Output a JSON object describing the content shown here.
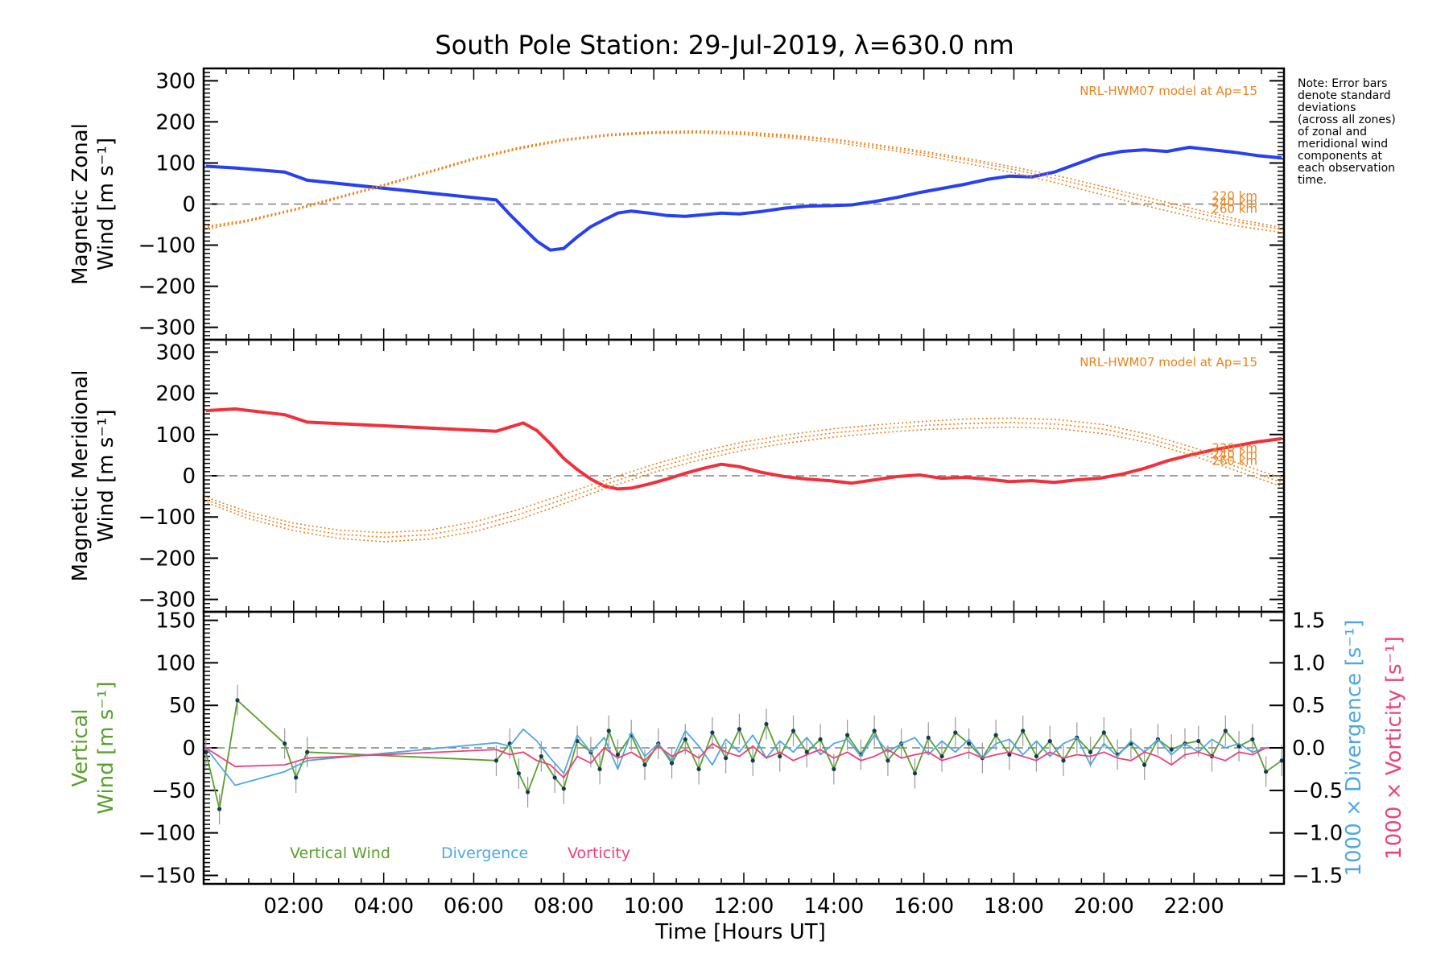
{
  "chart_data": [
    {
      "type": "line",
      "panel": "zonal",
      "title": "South Pole Station: 29-Jul-2019, λ=630.0 nm",
      "ylabel_lines": [
        "Magnetic Zonal",
        "Wind [m s⁻¹]"
      ],
      "ylim": [
        -330,
        330
      ],
      "yticks": [
        300,
        200,
        100,
        0,
        -100,
        -200,
        -300
      ],
      "xlim": [
        0.0,
        24.0
      ],
      "model_annotation": "NRL-HWM07 model at Ap=15",
      "model_altitude_labels": [
        "220 km",
        "240 km",
        "260 km"
      ],
      "note": [
        "Note: Error bars",
        "denote standard",
        "deviations",
        "(across all zones)",
        "of zonal and",
        "meridional wind",
        "components at",
        "each observation",
        "time."
      ],
      "series": [
        {
          "name": "Mean magnetic zonal wind",
          "color": "#2840f0",
          "x": [
            0.05,
            0.7,
            1.8,
            2.3,
            6.5,
            6.8,
            7.1,
            7.4,
            7.7,
            8.0,
            8.3,
            8.6,
            8.9,
            9.2,
            9.5,
            9.9,
            10.3,
            10.7,
            11.1,
            11.5,
            11.9,
            12.4,
            12.9,
            13.4,
            13.9,
            14.4,
            14.9,
            15.4,
            15.9,
            16.4,
            16.9,
            17.4,
            17.9,
            18.4,
            18.9,
            19.4,
            19.9,
            20.4,
            20.9,
            21.4,
            21.9,
            22.4,
            22.9,
            23.4,
            23.95
          ],
          "y": [
            92,
            88,
            78,
            58,
            10,
            -25,
            -58,
            -90,
            -112,
            -108,
            -80,
            -55,
            -38,
            -22,
            -17,
            -22,
            -28,
            -30,
            -26,
            -22,
            -24,
            -18,
            -10,
            -5,
            -4,
            -2,
            6,
            16,
            28,
            38,
            48,
            60,
            68,
            66,
            78,
            98,
            118,
            128,
            132,
            128,
            138,
            132,
            126,
            118,
            112
          ]
        },
        {
          "name": "NRL-HWM07 220 km",
          "color": "#e8831c",
          "x": [
            0.0,
            1.0,
            2.0,
            3.0,
            4.0,
            5.0,
            6.0,
            7.0,
            8.0,
            9.0,
            10.0,
            11.0,
            12.0,
            13.0,
            14.0,
            15.0,
            16.0,
            17.0,
            18.0,
            19.0,
            20.0,
            21.0,
            22.0,
            23.0,
            24.0
          ],
          "y": [
            -55,
            -38,
            -12,
            18,
            48,
            80,
            112,
            138,
            158,
            170,
            176,
            178,
            175,
            168,
            158,
            144,
            128,
            110,
            90,
            68,
            42,
            15,
            -12,
            -38,
            -58
          ]
        },
        {
          "name": "NRL-HWM07 240 km",
          "color": "#e8831c",
          "x": [
            0.0,
            1.0,
            2.0,
            3.0,
            4.0,
            5.0,
            6.0,
            7.0,
            8.0,
            9.0,
            10.0,
            11.0,
            12.0,
            13.0,
            14.0,
            15.0,
            16.0,
            17.0,
            18.0,
            19.0,
            20.0,
            21.0,
            22.0,
            23.0,
            24.0
          ],
          "y": [
            -58,
            -40,
            -14,
            16,
            46,
            78,
            110,
            136,
            156,
            168,
            174,
            176,
            172,
            165,
            155,
            140,
            124,
            106,
            84,
            60,
            34,
            6,
            -20,
            -44,
            -62
          ]
        },
        {
          "name": "NRL-HWM07 260 km",
          "color": "#e8831c",
          "x": [
            0.0,
            1.0,
            2.0,
            3.0,
            4.0,
            5.0,
            6.0,
            7.0,
            8.0,
            9.0,
            10.0,
            11.0,
            12.0,
            13.0,
            14.0,
            15.0,
            16.0,
            17.0,
            18.0,
            19.0,
            20.0,
            21.0,
            22.0,
            23.0,
            24.0
          ],
          "y": [
            -62,
            -42,
            -16,
            14,
            44,
            76,
            108,
            134,
            154,
            166,
            172,
            173,
            169,
            161,
            150,
            135,
            118,
            98,
            76,
            50,
            22,
            -6,
            -32,
            -54,
            -70
          ]
        }
      ]
    },
    {
      "type": "line",
      "panel": "meridional",
      "ylabel_lines": [
        "Magnetic Meridional",
        "Wind [m s⁻¹]"
      ],
      "ylim": [
        -330,
        330
      ],
      "yticks": [
        300,
        200,
        100,
        0,
        -100,
        -200,
        -300
      ],
      "xlim": [
        0.0,
        24.0
      ],
      "model_annotation": "NRL-HWM07 model at Ap=15",
      "model_altitude_labels": [
        "220 km",
        "240 km",
        "260 km"
      ],
      "series": [
        {
          "name": "Mean magnetic meridional wind",
          "color": "#f0303c",
          "x": [
            0.05,
            0.7,
            1.8,
            2.3,
            6.5,
            6.8,
            7.1,
            7.4,
            7.7,
            8.0,
            8.3,
            8.6,
            8.9,
            9.2,
            9.5,
            9.9,
            10.3,
            10.7,
            11.1,
            11.5,
            11.9,
            12.4,
            12.9,
            13.4,
            13.9,
            14.4,
            14.9,
            15.4,
            15.9,
            16.4,
            16.9,
            17.4,
            17.9,
            18.4,
            18.9,
            19.4,
            19.9,
            20.4,
            20.9,
            21.4,
            21.9,
            22.4,
            22.9,
            23.4,
            23.95
          ],
          "y": [
            158,
            162,
            148,
            130,
            108,
            118,
            128,
            110,
            78,
            42,
            15,
            -8,
            -25,
            -32,
            -30,
            -20,
            -8,
            6,
            18,
            28,
            22,
            8,
            -2,
            -8,
            -12,
            -18,
            -10,
            -2,
            2,
            -6,
            -4,
            -8,
            -14,
            -12,
            -16,
            -10,
            -6,
            4,
            18,
            36,
            50,
            62,
            72,
            82,
            90
          ]
        },
        {
          "name": "NRL-HWM07 220 km",
          "color": "#e8831c",
          "x": [
            0.0,
            1.0,
            2.0,
            3.0,
            4.0,
            5.0,
            6.0,
            7.0,
            8.0,
            9.0,
            10.0,
            11.0,
            12.0,
            13.0,
            14.0,
            15.0,
            16.0,
            17.0,
            18.0,
            19.0,
            20.0,
            21.0,
            22.0,
            23.0,
            24.0
          ],
          "y": [
            -50,
            -88,
            -115,
            -132,
            -138,
            -132,
            -112,
            -82,
            -45,
            -8,
            28,
            58,
            82,
            100,
            114,
            124,
            132,
            138,
            140,
            136,
            124,
            100,
            68,
            30,
            -8
          ]
        },
        {
          "name": "NRL-HWM07 240 km",
          "color": "#e8831c",
          "x": [
            0.0,
            1.0,
            2.0,
            3.0,
            4.0,
            5.0,
            6.0,
            7.0,
            8.0,
            9.0,
            10.0,
            11.0,
            12.0,
            13.0,
            14.0,
            15.0,
            16.0,
            17.0,
            18.0,
            19.0,
            20.0,
            21.0,
            22.0,
            23.0,
            24.0
          ],
          "y": [
            -56,
            -96,
            -124,
            -142,
            -149,
            -143,
            -124,
            -94,
            -57,
            -18,
            18,
            48,
            72,
            90,
            104,
            114,
            122,
            127,
            129,
            125,
            113,
            90,
            58,
            20,
            -18
          ]
        },
        {
          "name": "NRL-HWM07 260 km",
          "color": "#e8831c",
          "x": [
            0.0,
            1.0,
            2.0,
            3.0,
            4.0,
            5.0,
            6.0,
            7.0,
            8.0,
            9.0,
            10.0,
            11.0,
            12.0,
            13.0,
            14.0,
            15.0,
            16.0,
            17.0,
            18.0,
            19.0,
            20.0,
            21.0,
            22.0,
            23.0,
            24.0
          ],
          "y": [
            -62,
            -104,
            -133,
            -152,
            -160,
            -154,
            -136,
            -106,
            -68,
            -28,
            8,
            38,
            62,
            80,
            94,
            104,
            112,
            116,
            118,
            114,
            102,
            80,
            48,
            10,
            -28
          ]
        }
      ]
    },
    {
      "type": "line",
      "panel": "vertical",
      "ylabel_lines": [
        "Vertical",
        "Wind [m s⁻¹]"
      ],
      "ylim": [
        -160,
        160
      ],
      "yticks": [
        150,
        100,
        50,
        0,
        -50,
        -100,
        -150
      ],
      "y2lim": [
        -1.6,
        1.6
      ],
      "y2ticks": [
        1.5,
        1.0,
        0.5,
        0.0,
        -0.5,
        -1.0,
        -1.5
      ],
      "y2ticklabels": [
        "1.5",
        "1.0",
        "0.5",
        "0.0",
        "−0.5",
        "−1.0",
        "−1.5"
      ],
      "y2label_divergence": "1000 × Divergence [s⁻¹]",
      "y2label_vorticity": "1000 × Vorticity [s⁻¹]",
      "xlim": [
        0.0,
        24.0
      ],
      "xticks": [
        2,
        4,
        6,
        8,
        10,
        12,
        14,
        16,
        18,
        20,
        22
      ],
      "xticklabels": [
        "02:00",
        "04:00",
        "06:00",
        "08:00",
        "10:00",
        "12:00",
        "14:00",
        "16:00",
        "18:00",
        "20:00",
        "22:00"
      ],
      "xlabel": "Time [Hours UT]",
      "legend": [
        "Vertical Wind",
        "Divergence",
        "Vorticity"
      ],
      "series": [
        {
          "name": "Vertical Wind",
          "color": "#5aa02c",
          "x": [
            0.05,
            0.35,
            0.75,
            1.8,
            2.05,
            2.3,
            6.5,
            6.8,
            7.0,
            7.2,
            7.5,
            7.8,
            8.0,
            8.3,
            8.6,
            8.8,
            9.0,
            9.2,
            9.5,
            9.8,
            10.1,
            10.4,
            10.7,
            11.0,
            11.3,
            11.6,
            11.9,
            12.2,
            12.5,
            12.8,
            13.1,
            13.4,
            13.7,
            14.0,
            14.3,
            14.6,
            14.9,
            15.2,
            15.5,
            15.8,
            16.1,
            16.4,
            16.7,
            17.0,
            17.3,
            17.6,
            17.9,
            18.2,
            18.5,
            18.8,
            19.1,
            19.4,
            19.7,
            20.0,
            20.3,
            20.6,
            20.9,
            21.2,
            21.5,
            21.8,
            22.1,
            22.4,
            22.7,
            23.0,
            23.3,
            23.6,
            23.95
          ],
          "y": [
            -5,
            -72,
            56,
            5,
            -35,
            -5,
            -15,
            5,
            -30,
            -52,
            -10,
            -35,
            -48,
            8,
            -5,
            -25,
            20,
            -8,
            15,
            -20,
            5,
            -18,
            10,
            -25,
            18,
            -12,
            22,
            -15,
            28,
            -10,
            20,
            -5,
            10,
            -25,
            15,
            -8,
            20,
            -15,
            5,
            -30,
            12,
            -10,
            18,
            5,
            -12,
            15,
            -8,
            20,
            -10,
            8,
            -15,
            12,
            -5,
            18,
            -8,
            5,
            -20,
            10,
            -2,
            5,
            8,
            -10,
            20,
            2,
            10,
            -28,
            -15
          ]
        },
        {
          "name": "Divergence",
          "color": "#4ea8e0",
          "x": [
            0.05,
            0.7,
            1.8,
            2.3,
            6.5,
            6.8,
            7.1,
            7.4,
            7.7,
            8.0,
            8.3,
            8.6,
            8.9,
            9.2,
            9.5,
            9.8,
            10.1,
            10.4,
            10.7,
            11.0,
            11.3,
            11.6,
            11.9,
            12.2,
            12.5,
            12.8,
            13.1,
            13.4,
            13.7,
            14.0,
            14.3,
            14.6,
            14.9,
            15.2,
            15.5,
            15.8,
            16.1,
            16.4,
            16.7,
            17.0,
            17.3,
            17.6,
            17.9,
            18.2,
            18.5,
            18.8,
            19.1,
            19.4,
            19.7,
            20.0,
            20.3,
            20.6,
            20.9,
            21.2,
            21.5,
            21.8,
            22.1,
            22.4,
            22.7,
            23.0,
            23.3,
            23.6,
            23.95
          ],
          "y": [
            0.0,
            -0.44,
            -0.28,
            -0.15,
            0.06,
            0.02,
            0.22,
            0.08,
            -0.12,
            -0.3,
            0.15,
            -0.05,
            0.12,
            -0.25,
            0.18,
            -0.1,
            0.05,
            -0.15,
            0.2,
            0.02,
            -0.2,
            0.1,
            -0.05,
            0.15,
            -0.12,
            0.08,
            -0.05,
            0.12,
            -0.08,
            0.05,
            0.1,
            -0.1,
            0.15,
            -0.05,
            0.05,
            0.12,
            -0.08,
            0.08,
            -0.05,
            0.1,
            -0.12,
            0.05,
            0.1,
            -0.08,
            0.08,
            -0.1,
            0.05,
            0.12,
            -0.2,
            0.05,
            -0.1,
            0.08,
            -0.05,
            0.1,
            -0.08,
            0.05,
            -0.05,
            0.1,
            0.0,
            0.05,
            -0.05,
            0.0,
            0.0
          ]
        },
        {
          "name": "Vorticity",
          "color": "#f0407a",
          "x": [
            0.05,
            0.7,
            1.8,
            2.3,
            6.5,
            6.8,
            7.1,
            7.4,
            7.7,
            8.0,
            8.3,
            8.6,
            8.9,
            9.2,
            9.5,
            9.8,
            10.1,
            10.4,
            10.7,
            11.0,
            11.3,
            11.6,
            11.9,
            12.2,
            12.5,
            12.8,
            13.1,
            13.4,
            13.7,
            14.0,
            14.3,
            14.6,
            14.9,
            15.2,
            15.5,
            15.8,
            16.1,
            16.4,
            16.7,
            17.0,
            17.3,
            17.6,
            17.9,
            18.2,
            18.5,
            18.8,
            19.1,
            19.4,
            19.7,
            20.0,
            20.3,
            20.6,
            20.9,
            21.2,
            21.5,
            21.8,
            22.1,
            22.4,
            22.7,
            23.0,
            23.3,
            23.6,
            23.95
          ],
          "y": [
            0.0,
            -0.22,
            -0.2,
            -0.12,
            -0.02,
            -0.08,
            -0.05,
            -0.15,
            -0.2,
            -0.35,
            -0.1,
            -0.18,
            0.0,
            -0.12,
            -0.05,
            -0.15,
            0.02,
            -0.1,
            -0.02,
            -0.12,
            0.05,
            -0.05,
            -0.1,
            0.02,
            -0.12,
            -0.05,
            -0.15,
            -0.08,
            -0.02,
            -0.12,
            -0.05,
            -0.15,
            -0.1,
            -0.02,
            -0.12,
            -0.08,
            -0.05,
            -0.15,
            -0.1,
            -0.05,
            -0.12,
            -0.08,
            -0.05,
            -0.1,
            -0.15,
            -0.05,
            -0.12,
            -0.08,
            -0.1,
            -0.05,
            -0.12,
            -0.15,
            -0.05,
            -0.1,
            -0.2,
            -0.08,
            -0.05,
            -0.1,
            -0.15,
            -0.05,
            -0.08,
            0.0,
            0.0
          ]
        }
      ]
    }
  ]
}
